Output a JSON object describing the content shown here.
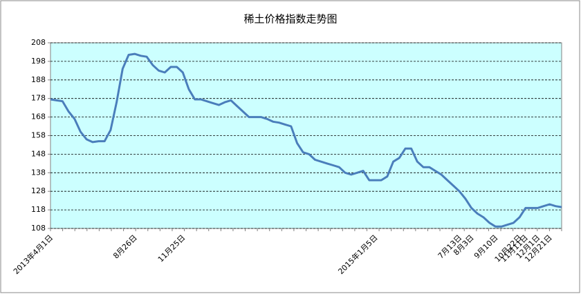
{
  "chart_data": {
    "type": "line",
    "title": "稀土价格指数走势图",
    "categories": [
      "2013年4月1日",
      null,
      null,
      null,
      null,
      null,
      null,
      null,
      null,
      null,
      null,
      null,
      null,
      null,
      "8月26日",
      null,
      null,
      null,
      null,
      null,
      null,
      null,
      "11月25日",
      null,
      null,
      null,
      null,
      null,
      null,
      null,
      null,
      null,
      null,
      null,
      null,
      null,
      null,
      null,
      null,
      null,
      null,
      null,
      null,
      null,
      null,
      null,
      null,
      null,
      null,
      null,
      null,
      null,
      null,
      null,
      "2015年1月5日",
      null,
      null,
      null,
      null,
      null,
      null,
      null,
      null,
      null,
      null,
      null,
      null,
      null,
      "7月13日",
      null,
      "8月3日",
      null,
      null,
      null,
      "9月10日",
      null,
      null,
      null,
      "10月22日",
      "11月11日",
      null,
      "12月1日",
      null,
      "12月21日",
      null,
      null
    ],
    "series": [
      {
        "color": "#4a7ebb",
        "values": [
          177.5,
          177,
          176.5,
          171,
          167,
          160,
          156,
          154.5,
          155,
          155,
          161,
          176,
          194,
          201.5,
          202,
          201,
          200.5,
          196,
          193,
          192,
          195,
          195,
          192,
          183,
          177.5,
          177.5,
          176.5,
          175.5,
          174.5,
          176,
          177,
          174,
          171,
          168,
          168,
          168,
          167,
          165.5,
          165,
          164,
          163,
          154,
          149,
          148,
          145,
          144,
          143,
          142,
          141,
          138,
          137,
          138,
          139,
          134,
          134,
          134,
          136,
          144,
          146,
          151,
          151,
          144,
          141,
          141,
          139,
          137,
          134,
          131,
          128,
          124,
          119,
          116,
          114,
          111,
          109,
          109,
          110,
          111,
          114,
          119,
          119,
          119,
          120,
          121,
          120,
          119.5
        ]
      }
    ],
    "ylim": [
      108,
      208
    ],
    "yticks": [
      108,
      118,
      128,
      138,
      148,
      158,
      168,
      178,
      188,
      198,
      208
    ],
    "grid": true
  }
}
